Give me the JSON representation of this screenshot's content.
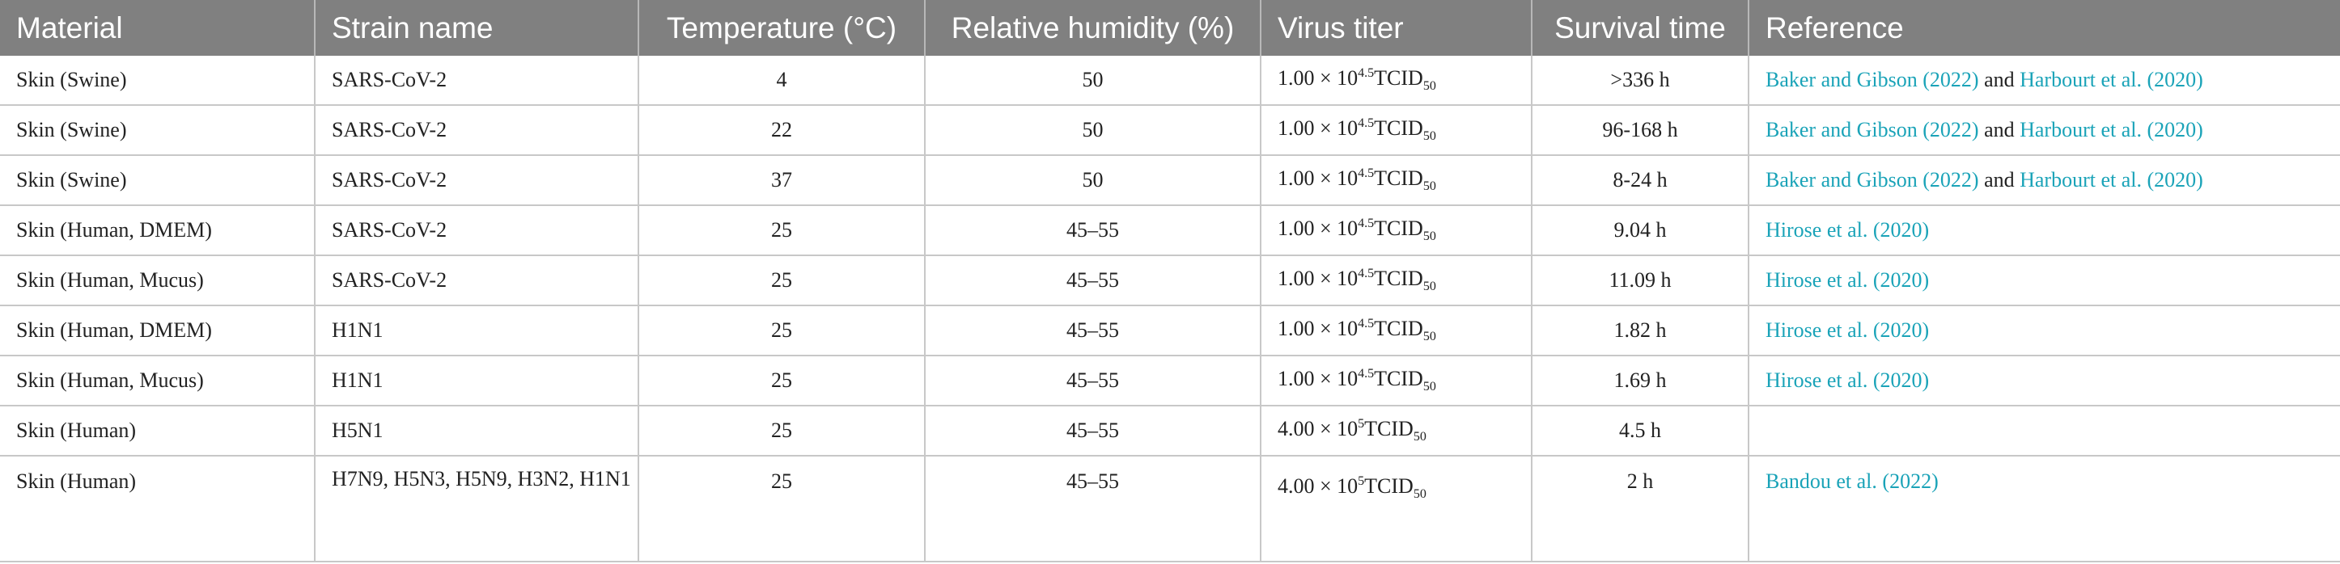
{
  "headers": {
    "material": "Material",
    "strain": "Strain name",
    "temperature": "Temperature (°C)",
    "humidity": "Relative humidity (%)",
    "titer": "Virus titer",
    "survival": "Survival time",
    "reference": "Reference"
  },
  "rows": [
    {
      "material": "Skin (Swine)",
      "strain": "SARS-CoV-2",
      "temperature": "4",
      "humidity": "50",
      "titer": {
        "base": "1.00 × 10",
        "exp": "4.5",
        "unit": "TCID",
        "sub": "50"
      },
      "survival": ">336 h",
      "ref": {
        "a": "Baker and Gibson (2022)",
        "sep": " and ",
        "b": "Harbourt et al. (2020)"
      }
    },
    {
      "material": "Skin (Swine)",
      "strain": "SARS-CoV-2",
      "temperature": "22",
      "humidity": "50",
      "titer": {
        "base": "1.00 × 10",
        "exp": "4.5",
        "unit": "TCID",
        "sub": "50"
      },
      "survival": "96-168 h",
      "ref": {
        "a": "Baker and Gibson (2022)",
        "sep": " and ",
        "b": "Harbourt et al. (2020)"
      }
    },
    {
      "material": "Skin (Swine)",
      "strain": "SARS-CoV-2",
      "temperature": "37",
      "humidity": "50",
      "titer": {
        "base": "1.00 × 10",
        "exp": "4.5",
        "unit": "TCID",
        "sub": "50"
      },
      "survival": "8-24 h",
      "ref": {
        "a": "Baker and Gibson (2022)",
        "sep": " and ",
        "b": "Harbourt et al. (2020)"
      }
    },
    {
      "material": "Skin (Human, DMEM)",
      "strain": "SARS-CoV-2",
      "temperature": "25",
      "humidity": "45–55",
      "titer": {
        "base": "1.00 × 10",
        "exp": "4.5",
        "unit": "TCID",
        "sub": "50"
      },
      "survival": "9.04 h",
      "ref": {
        "a": "Hirose et al. (2020)",
        "sep": "",
        "b": ""
      }
    },
    {
      "material": "Skin (Human, Mucus)",
      "strain": "SARS-CoV-2",
      "temperature": "25",
      "humidity": "45–55",
      "titer": {
        "base": "1.00 × 10",
        "exp": "4.5",
        "unit": "TCID",
        "sub": "50"
      },
      "survival": "11.09 h",
      "ref": {
        "a": "Hirose et al. (2020)",
        "sep": "",
        "b": ""
      }
    },
    {
      "material": "Skin (Human, DMEM)",
      "strain": "H1N1",
      "temperature": "25",
      "humidity": "45–55",
      "titer": {
        "base": "1.00 × 10",
        "exp": "4.5",
        "unit": "TCID",
        "sub": "50"
      },
      "survival": "1.82 h",
      "ref": {
        "a": "Hirose et al. (2020)",
        "sep": "",
        "b": ""
      }
    },
    {
      "material": "Skin (Human, Mucus)",
      "strain": "H1N1",
      "temperature": "25",
      "humidity": "45–55",
      "titer": {
        "base": "1.00 × 10",
        "exp": "4.5",
        "unit": "TCID",
        "sub": "50"
      },
      "survival": "1.69 h",
      "ref": {
        "a": "Hirose et al. (2020)",
        "sep": "",
        "b": ""
      }
    },
    {
      "material": "Skin (Human)",
      "strain": "H5N1",
      "temperature": "25",
      "humidity": "45–55",
      "titer": {
        "base": "4.00 × 10",
        "exp": "5",
        "unit": "TCID",
        "sub": "50"
      },
      "survival": "4.5 h",
      "ref": {
        "a": "",
        "sep": "",
        "b": ""
      }
    },
    {
      "material": "Skin (Human)",
      "strain": "H7N9, H5N3, H5N9, H3N2, H1N1",
      "temperature": "25",
      "humidity": "45–55",
      "titer": {
        "base": "4.00 × 10",
        "exp": "5",
        "unit": "TCID",
        "sub": "50"
      },
      "survival": "2 h",
      "ref": {
        "a": "Bandou et al. (2022)",
        "sep": "",
        "b": ""
      }
    }
  ]
}
